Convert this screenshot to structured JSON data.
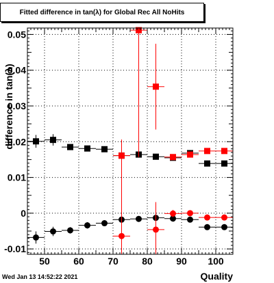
{
  "page": {
    "title": "Fitted difference in tan(λ) for Global Rec All NoHits",
    "footer_date": "Wed Jan 13 14:52:22 2021"
  },
  "chart_data": {
    "type": "scatter",
    "title": "Fitted difference in tan(λ) for Global Rec All NoHits",
    "xlabel": "Quality",
    "ylabel": "difference in tan(λ)",
    "xlim": [
      45,
      105
    ],
    "ylim": [
      -0.0115,
      0.0518
    ],
    "x_ticks": [
      50,
      60,
      70,
      80,
      90,
      100
    ],
    "y_ticks": [
      -0.01,
      0,
      0.01,
      0.02,
      0.03,
      0.04,
      0.05
    ],
    "y_tick_labels": [
      "-0.01",
      "0",
      "0.01",
      "0.02",
      "0.03",
      "0.04",
      "0.05"
    ],
    "grid": true,
    "series": [
      {
        "marker": "square",
        "color": "#000000",
        "points": [
          {
            "x": 47.5,
            "y": 0.0201,
            "yerr": 0.0018
          },
          {
            "x": 52.5,
            "y": 0.0205,
            "yerr": 0.0016
          },
          {
            "x": 57.5,
            "y": 0.0185,
            "yerr": 0.0008
          },
          {
            "x": 62.5,
            "y": 0.0181,
            "yerr": 0.0007
          },
          {
            "x": 67.5,
            "y": 0.0179,
            "yerr": 0.0008
          },
          {
            "x": 72.5,
            "y": 0.0161,
            "yerr": 0.0006
          },
          {
            "x": 77.5,
            "y": 0.0164,
            "yerr": 0.0004
          },
          {
            "x": 82.5,
            "y": 0.0158,
            "yerr": 0.0004
          },
          {
            "x": 87.5,
            "y": 0.0155,
            "yerr": 0.0004
          },
          {
            "x": 92.5,
            "y": 0.0168,
            "yerr": 0.0003
          },
          {
            "x": 97.5,
            "y": 0.0139,
            "yerr": 0.0003
          },
          {
            "x": 102.5,
            "y": 0.0139,
            "yerr": 0.0003
          }
        ]
      },
      {
        "marker": "circle",
        "color": "#000000",
        "points": [
          {
            "x": 47.5,
            "y": -0.0068,
            "yerr": 0.0017
          },
          {
            "x": 52.5,
            "y": -0.0051,
            "yerr": 0.0013
          },
          {
            "x": 57.5,
            "y": -0.0048,
            "yerr": 0.0009
          },
          {
            "x": 62.5,
            "y": -0.0034,
            "yerr": 0.0009
          },
          {
            "x": 67.5,
            "y": -0.0028,
            "yerr": 0.0008
          },
          {
            "x": 72.5,
            "y": -0.0018,
            "yerr": 0.0006
          },
          {
            "x": 77.5,
            "y": -0.0016,
            "yerr": 0.0005
          },
          {
            "x": 82.5,
            "y": -0.0013,
            "yerr": 0.0005
          },
          {
            "x": 87.5,
            "y": -0.0015,
            "yerr": 0.0005
          },
          {
            "x": 92.5,
            "y": -0.0018,
            "yerr": 0.0004
          },
          {
            "x": 97.5,
            "y": -0.0039,
            "yerr": 0.0004
          },
          {
            "x": 102.5,
            "y": -0.0039,
            "yerr": 0.0004
          }
        ]
      },
      {
        "marker": "square",
        "color": "#ff0000",
        "points": [
          {
            "x": 72.5,
            "y": 0.0161,
            "yerr": 0.0045
          },
          {
            "x": 77.5,
            "y": 0.0512,
            "yerr": 0.0355
          },
          {
            "x": 82.5,
            "y": 0.0354,
            "yerr": 0.012
          },
          {
            "x": 87.5,
            "y": 0.0157,
            "yerr": 0.0008
          },
          {
            "x": 92.5,
            "y": 0.0164,
            "yerr": 0.0004
          },
          {
            "x": 97.5,
            "y": 0.0174,
            "yerr": 0.0003
          },
          {
            "x": 102.5,
            "y": 0.0174,
            "yerr": 0.0003
          }
        ]
      },
      {
        "marker": "circle",
        "color": "#ff0000",
        "points": [
          {
            "x": 72.5,
            "y": -0.0064,
            "yerr": 0.0265
          },
          {
            "x": 82.5,
            "y": -0.0046,
            "yerr": 0.0077
          },
          {
            "x": 87.5,
            "y": -0.0001,
            "yerr": 0.001
          },
          {
            "x": 92.5,
            "y": 0.0,
            "yerr": 0.0005
          },
          {
            "x": 97.5,
            "y": -0.0012,
            "yerr": 0.0003
          },
          {
            "x": 102.5,
            "y": -0.0012,
            "yerr": 0.0003
          }
        ]
      }
    ]
  }
}
